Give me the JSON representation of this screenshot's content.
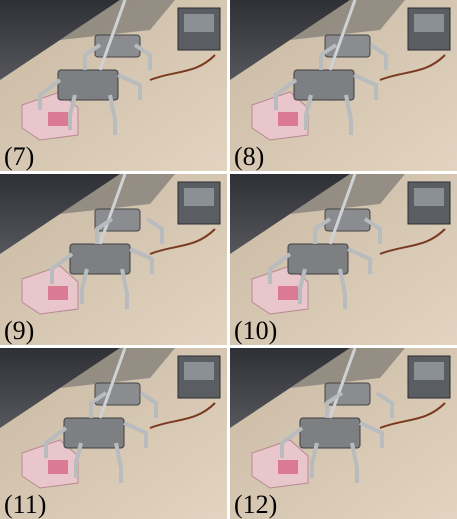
{
  "panels": [
    {
      "label": "(7)"
    },
    {
      "label": "(8)"
    },
    {
      "label": "(9)"
    },
    {
      "label": "(10)"
    },
    {
      "label": "(11)"
    },
    {
      "label": "(12)"
    }
  ]
}
